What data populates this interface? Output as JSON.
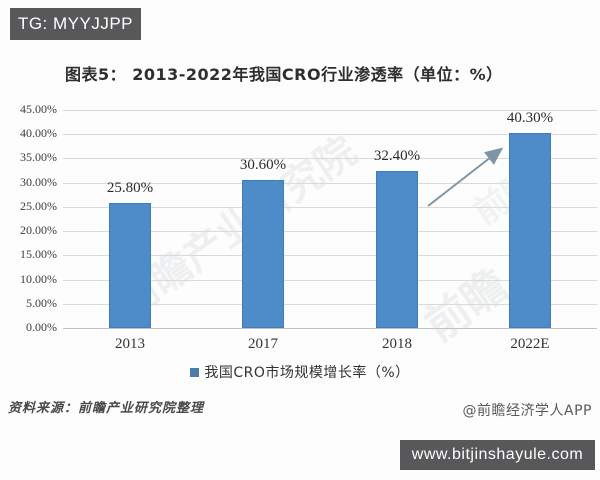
{
  "badges": {
    "top_left": "TG: MYYJJPP",
    "bottom_right": "www.bitjinshayule.com"
  },
  "chart_data": {
    "type": "bar",
    "title": "图表5：  2013-2022年我国CRO行业渗透率（单位：%）",
    "categories": [
      "2013",
      "2017",
      "2018",
      "2022E"
    ],
    "values": [
      25.8,
      30.6,
      32.4,
      40.3
    ],
    "value_labels": [
      "25.80%",
      "30.60%",
      "32.40%",
      "40.30%"
    ],
    "y_ticks": [
      "45.00%",
      "40.00%",
      "35.00%",
      "30.00%",
      "25.00%",
      "20.00%",
      "15.00%",
      "10.00%",
      "5.00%",
      "0.00%"
    ],
    "ylim": [
      0,
      45
    ],
    "grid": true,
    "legend": "我国CRO市场规模增长率（%）",
    "legend_position": "bottom-center",
    "bar_color": "#4e8cc9",
    "annotation": "arrow rising from 2018 bar toward 2022E bar"
  },
  "footer": {
    "source": "资料来源：前瞻产业研究院整理",
    "credit": "@前瞻经济学人APP"
  },
  "watermark": {
    "text_large": "前瞻产业研究院",
    "text_small": "前瞻"
  },
  "colors": {
    "bar": "#4e8cc9",
    "badge_bg": "#58585a",
    "gridline": "#dadada",
    "arrow": "#7e95a7"
  }
}
